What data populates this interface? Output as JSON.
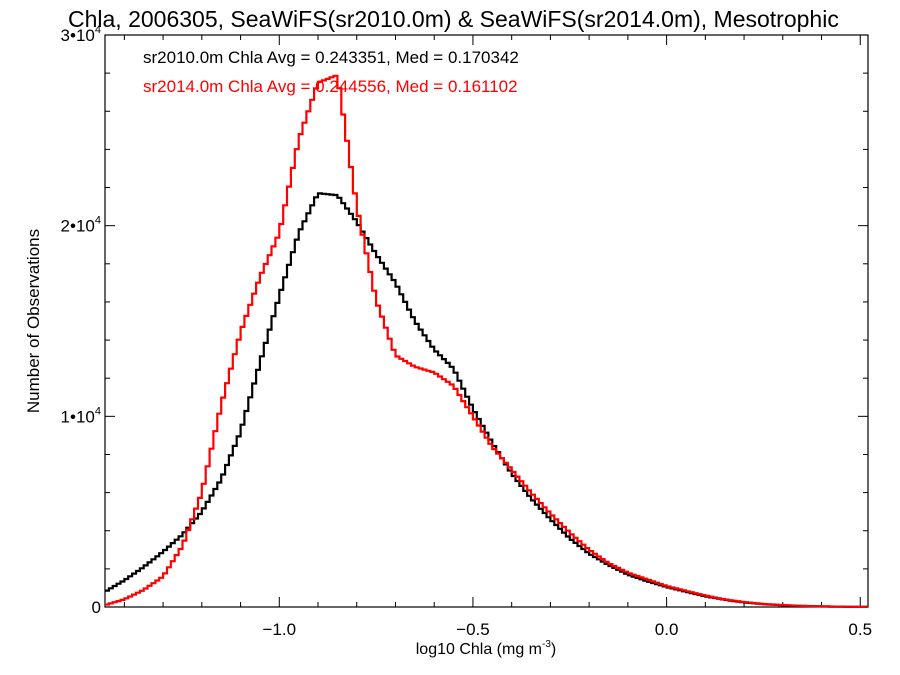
{
  "chart_data": {
    "type": "line",
    "title": "Chla, 2006305, SeaWiFS(sr2010.0m) & SeaWiFS(sr2014.0m), Mesotrophic",
    "xlabel": "log10 Chla (mg m",
    "xlabel_sup": "-3",
    "xlabel_close": ")",
    "ylabel": "Number of Observations",
    "xlim": [
      -1.45,
      0.52
    ],
    "ylim": [
      0,
      30000
    ],
    "log_scale": false,
    "grid": false,
    "x_ticks": [
      {
        "value": -1.0,
        "label": "−1.0"
      },
      {
        "value": -0.5,
        "label": "−0.5"
      },
      {
        "value": 0.0,
        "label": "0.0"
      },
      {
        "value": 0.5,
        "label": "0.5"
      }
    ],
    "y_ticks": [
      {
        "value": 0,
        "base": "0",
        "exp": ""
      },
      {
        "value": 10000,
        "base": "1•10",
        "exp": "4"
      },
      {
        "value": 20000,
        "base": "2•10",
        "exp": "4"
      },
      {
        "value": 30000,
        "base": "3•10",
        "exp": "4"
      }
    ],
    "annotations": [
      {
        "text": "sr2010.0m Chla Avg = 0.243351, Med = 0.170342",
        "color": "#000000"
      },
      {
        "text": "sr2014.0m Chla Avg = 0.244556, Med = 0.161102",
        "color": "#ff0000"
      }
    ],
    "x": [
      -1.45,
      -1.4,
      -1.35,
      -1.3,
      -1.25,
      -1.2,
      -1.15,
      -1.1,
      -1.05,
      -1.0,
      -0.95,
      -0.9,
      -0.85,
      -0.8,
      -0.75,
      -0.7,
      -0.65,
      -0.6,
      -0.55,
      -0.5,
      -0.45,
      -0.4,
      -0.35,
      -0.3,
      -0.25,
      -0.2,
      -0.15,
      -0.1,
      -0.05,
      0.0,
      0.05,
      0.1,
      0.15,
      0.2,
      0.25,
      0.3,
      0.35,
      0.4,
      0.45,
      0.52
    ],
    "series": [
      {
        "color": "#000000",
        "values": [
          800,
          1400,
          2100,
          2900,
          3800,
          5000,
          6700,
          9200,
          12800,
          16300,
          19600,
          21700,
          21600,
          20200,
          18500,
          17000,
          15000,
          13500,
          12500,
          10400,
          8600,
          7000,
          5700,
          4600,
          3600,
          2800,
          2200,
          1700,
          1350,
          1050,
          800,
          560,
          380,
          240,
          150,
          90,
          55,
          30,
          15,
          5
        ]
      },
      {
        "color": "#ff0000",
        "values": [
          100,
          400,
          900,
          1600,
          3200,
          6000,
          10600,
          14400,
          17300,
          19600,
          24500,
          27500,
          27900,
          21000,
          16100,
          13200,
          12600,
          12300,
          11600,
          10000,
          8400,
          7200,
          6000,
          4900,
          3900,
          3000,
          2300,
          1800,
          1450,
          1100,
          850,
          600,
          400,
          260,
          160,
          100,
          60,
          35,
          18,
          5
        ]
      }
    ]
  }
}
